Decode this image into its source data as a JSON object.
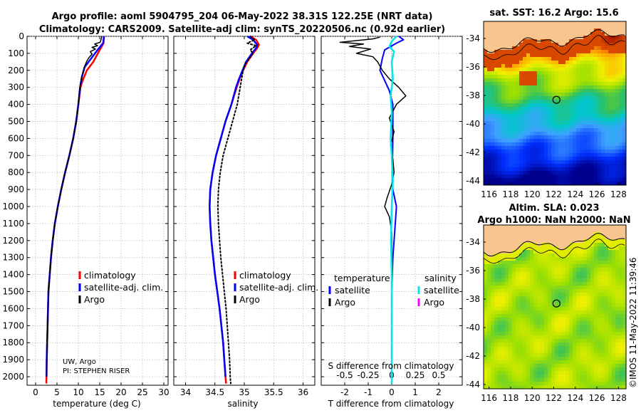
{
  "titles": {
    "line1": "Argo profile: aoml 5904795_204 06-May-2022 38.31S 122.25E (NRT data)",
    "line2": "Climatology: CARS2009. Satellite-adj clim: synTS_20220506.nc (0.92d earlier)"
  },
  "credits": {
    "line1": "UW, Argo",
    "line2": "PI: STEPHEN RISER"
  },
  "stamp": "©IMOS 11-May-2022 11:39:46",
  "colors": {
    "climatology": "#ff0000",
    "satellite": "#0000ff",
    "argo": "#000000",
    "sat_salinity": "#00e5ee",
    "argo_salinity": "#ff00ff"
  },
  "chart_data": [
    {
      "type": "line",
      "xlabel": "temperature (deg C)",
      "xlim": [
        -2,
        31
      ],
      "ylim": [
        2050,
        0
      ],
      "xticks": [
        0,
        5,
        10,
        15,
        20,
        25,
        30
      ],
      "yticks": [
        0,
        100,
        200,
        300,
        400,
        500,
        600,
        700,
        800,
        900,
        1000,
        1100,
        1200,
        1300,
        1400,
        1500,
        1600,
        1700,
        1800,
        1900,
        2000
      ],
      "legend": {
        "position": "center-right",
        "entries": [
          "climatology",
          "satellite-adj. clim.",
          "Argo"
        ]
      },
      "series": [
        {
          "name": "climatology",
          "color": "#ff0000",
          "width": 2.5,
          "points": [
            [
              16.0,
              0
            ],
            [
              15.9,
              40
            ],
            [
              15.0,
              80
            ],
            [
              13.5,
              150
            ],
            [
              12.0,
              200
            ],
            [
              11.0,
              260
            ],
            [
              10.5,
              300
            ],
            [
              10.0,
              400
            ],
            [
              9.5,
              500
            ],
            [
              8.8,
              600
            ],
            [
              7.9,
              700
            ],
            [
              6.9,
              800
            ],
            [
              6.0,
              900
            ],
            [
              5.2,
              1000
            ],
            [
              4.5,
              1100
            ],
            [
              4.0,
              1200
            ],
            [
              3.6,
              1300
            ],
            [
              3.3,
              1400
            ],
            [
              3.0,
              1500
            ],
            [
              2.9,
              1600
            ],
            [
              2.8,
              1700
            ],
            [
              2.7,
              1800
            ],
            [
              2.6,
              1900
            ],
            [
              2.55,
              2000
            ],
            [
              2.5,
              2040
            ]
          ]
        },
        {
          "name": "satellite-adj. clim.",
          "color": "#0000ff",
          "width": 2.5,
          "points": [
            [
              16.0,
              0
            ],
            [
              15.8,
              40
            ],
            [
              14.5,
              80
            ],
            [
              13.0,
              130
            ],
            [
              11.5,
              180
            ],
            [
              10.8,
              240
            ],
            [
              10.4,
              300
            ],
            [
              10.0,
              400
            ],
            [
              9.5,
              500
            ],
            [
              8.8,
              600
            ],
            [
              7.9,
              700
            ],
            [
              6.9,
              800
            ],
            [
              6.0,
              900
            ],
            [
              5.2,
              1000
            ],
            [
              4.5,
              1100
            ],
            [
              4.0,
              1200
            ],
            [
              3.6,
              1300
            ],
            [
              3.3,
              1400
            ],
            [
              3.0,
              1500
            ],
            [
              2.9,
              1600
            ],
            [
              2.8,
              1700
            ],
            [
              2.7,
              1800
            ],
            [
              2.6,
              1900
            ],
            [
              2.55,
              2000
            ]
          ]
        },
        {
          "name": "Argo",
          "color": "#000000",
          "width": 1.5,
          "points": [
            [
              15.5,
              0
            ],
            [
              15.3,
              20
            ],
            [
              15.1,
              35
            ],
            [
              13.8,
              45
            ],
            [
              14.5,
              55
            ],
            [
              13.2,
              65
            ],
            [
              14.0,
              75
            ],
            [
              12.8,
              90
            ],
            [
              13.2,
              105
            ],
            [
              12.5,
              125
            ],
            [
              12.0,
              145
            ],
            [
              11.4,
              180
            ],
            [
              10.9,
              230
            ],
            [
              10.5,
              280
            ],
            [
              10.2,
              340
            ],
            [
              9.9,
              420
            ],
            [
              9.5,
              500
            ],
            [
              8.8,
              600
            ],
            [
              7.9,
              700
            ],
            [
              6.9,
              800
            ],
            [
              6.0,
              900
            ],
            [
              5.2,
              1000
            ],
            [
              4.5,
              1100
            ],
            [
              4.0,
              1200
            ],
            [
              3.6,
              1300
            ],
            [
              3.3,
              1400
            ],
            [
              3.0,
              1500
            ],
            [
              2.9,
              1600
            ],
            [
              2.8,
              1700
            ],
            [
              2.7,
              1800
            ],
            [
              2.6,
              1900
            ],
            [
              2.55,
              2000
            ]
          ]
        }
      ]
    },
    {
      "type": "line",
      "xlabel": "salinity",
      "xlim": [
        33.8,
        36.2
      ],
      "ylim": [
        2050,
        0
      ],
      "xticks": [
        34,
        34.5,
        35,
        35.5,
        36
      ],
      "legend": {
        "position": "center-right",
        "entries": [
          "climatology",
          "satellite-adj. clim.",
          "Argo"
        ]
      },
      "series": [
        {
          "name": "climatology",
          "color": "#ff0000",
          "width": 2.5,
          "points": [
            [
              35.1,
              0
            ],
            [
              35.2,
              20
            ],
            [
              35.25,
              50
            ],
            [
              35.22,
              70
            ],
            [
              35.15,
              100
            ],
            [
              35.05,
              150
            ],
            [
              34.98,
              200
            ],
            [
              34.92,
              250
            ],
            [
              34.87,
              300
            ],
            [
              34.78,
              400
            ],
            [
              34.68,
              500
            ],
            [
              34.6,
              600
            ],
            [
              34.52,
              700
            ],
            [
              34.46,
              800
            ],
            [
              34.42,
              900
            ],
            [
              34.41,
              1000
            ],
            [
              34.42,
              1100
            ],
            [
              34.44,
              1200
            ],
            [
              34.47,
              1300
            ],
            [
              34.5,
              1400
            ],
            [
              34.54,
              1500
            ],
            [
              34.58,
              1600
            ],
            [
              34.61,
              1700
            ],
            [
              34.64,
              1800
            ],
            [
              34.66,
              1900
            ],
            [
              34.68,
              2000
            ],
            [
              34.69,
              2040
            ]
          ]
        },
        {
          "name": "satellite-adj. clim.",
          "color": "#0000ff",
          "width": 2.5,
          "points": [
            [
              35.05,
              0
            ],
            [
              35.15,
              20
            ],
            [
              35.22,
              50
            ],
            [
              35.2,
              70
            ],
            [
              35.13,
              100
            ],
            [
              35.03,
              150
            ],
            [
              34.97,
              200
            ],
            [
              34.91,
              250
            ],
            [
              34.86,
              300
            ],
            [
              34.78,
              400
            ],
            [
              34.68,
              500
            ],
            [
              34.6,
              600
            ],
            [
              34.52,
              700
            ],
            [
              34.46,
              800
            ],
            [
              34.42,
              900
            ],
            [
              34.41,
              1000
            ],
            [
              34.42,
              1100
            ],
            [
              34.44,
              1200
            ],
            [
              34.47,
              1300
            ],
            [
              34.5,
              1400
            ],
            [
              34.54,
              1500
            ],
            [
              34.58,
              1600
            ],
            [
              34.61,
              1700
            ],
            [
              34.64,
              1800
            ],
            [
              34.66,
              1900
            ],
            [
              34.68,
              2000
            ]
          ]
        },
        {
          "name": "Argo",
          "color": "#000000",
          "width": 2,
          "dotted": true,
          "points": [
            [
              35.1,
              0
            ],
            [
              35.18,
              20
            ],
            [
              35.05,
              40
            ],
            [
              35.2,
              55
            ],
            [
              35.1,
              80
            ],
            [
              35.15,
              100
            ],
            [
              35.02,
              160
            ],
            [
              34.98,
              200
            ],
            [
              34.93,
              300
            ],
            [
              34.88,
              400
            ],
            [
              34.8,
              500
            ],
            [
              34.72,
              600
            ],
            [
              34.64,
              700
            ],
            [
              34.59,
              800
            ],
            [
              34.56,
              900
            ],
            [
              34.55,
              1000
            ],
            [
              34.56,
              1100
            ],
            [
              34.58,
              1200
            ],
            [
              34.6,
              1300
            ],
            [
              34.63,
              1400
            ],
            [
              34.66,
              1500
            ],
            [
              34.69,
              1600
            ],
            [
              34.71,
              1700
            ],
            [
              34.73,
              1800
            ],
            [
              34.75,
              1900
            ],
            [
              34.76,
              2000
            ],
            [
              34.77,
              2040
            ]
          ]
        }
      ]
    },
    {
      "type": "line",
      "xlabel": "T difference from climatology",
      "xlabel_top": "S difference from climatology",
      "xlim": [
        -3,
        3
      ],
      "ylim": [
        2050,
        0
      ],
      "xticks": [
        -2,
        -1,
        0,
        1,
        2
      ],
      "xticks_top": [
        -0.5,
        -0.25,
        0,
        0.25,
        0.5
      ],
      "xlim_top": [
        -0.75,
        0.75
      ],
      "legend": {
        "position": "center",
        "temperature_title": "temperature",
        "salinity_title": "salinity",
        "entries": [
          "satellite",
          "Argo"
        ]
      },
      "series": [
        {
          "name": "satellite",
          "group": "temperature",
          "color": "#0000ff",
          "width": 2,
          "points": [
            [
              0.3,
              0
            ],
            [
              0.5,
              20
            ],
            [
              0.2,
              40
            ],
            [
              -0.3,
              80
            ],
            [
              -0.4,
              130
            ],
            [
              -0.5,
              200
            ],
            [
              -0.3,
              260
            ],
            [
              -0.1,
              320
            ],
            [
              0.05,
              400
            ],
            [
              0.05,
              600
            ],
            [
              0.02,
              800
            ],
            [
              0.05,
              900
            ],
            [
              0.2,
              1000
            ],
            [
              0.15,
              1100
            ],
            [
              0.05,
              1300
            ],
            [
              0.0,
              1500
            ],
            [
              0.0,
              1800
            ],
            [
              0.0,
              2040
            ]
          ]
        },
        {
          "name": "Argo",
          "group": "temperature",
          "color": "#000000",
          "width": 1.5,
          "points": [
            [
              -0.5,
              5
            ],
            [
              -0.8,
              15
            ],
            [
              -2.2,
              35
            ],
            [
              -1.2,
              45
            ],
            [
              -1.8,
              60
            ],
            [
              -0.9,
              75
            ],
            [
              -1.5,
              100
            ],
            [
              -0.8,
              120
            ],
            [
              -0.6,
              150
            ],
            [
              -0.4,
              200
            ],
            [
              -0.1,
              250
            ],
            [
              0.3,
              300
            ],
            [
              0.6,
              350
            ],
            [
              0.2,
              400
            ],
            [
              -0.1,
              480
            ],
            [
              0.1,
              560
            ],
            [
              -0.05,
              640
            ],
            [
              0.05,
              720
            ],
            [
              0.1,
              800
            ],
            [
              0.0,
              870
            ],
            [
              -0.2,
              950
            ],
            [
              -0.3,
              1000
            ],
            [
              -0.1,
              1060
            ],
            [
              0.0,
              1150
            ],
            [
              0.0,
              1300
            ],
            [
              0.0,
              1500
            ],
            [
              0.0,
              1800
            ],
            [
              0.0,
              2000
            ]
          ]
        },
        {
          "name": "satellite",
          "group": "salinity",
          "color": "#00e5ee",
          "width": 2.5,
          "points": [
            [
              0.2,
              0
            ],
            [
              0.0,
              30
            ],
            [
              -0.1,
              60
            ],
            [
              0.1,
              90
            ],
            [
              0.0,
              150
            ],
            [
              0.05,
              250
            ],
            [
              -0.05,
              350
            ],
            [
              0.0,
              450
            ],
            [
              -0.05,
              600
            ],
            [
              0.0,
              700
            ],
            [
              0.05,
              850
            ],
            [
              0.0,
              1000
            ],
            [
              -0.03,
              1200
            ],
            [
              0.0,
              1400
            ],
            [
              0.0,
              1700
            ],
            [
              0.0,
              2040
            ]
          ]
        },
        {
          "name": "Argo",
          "group": "salinity",
          "color": "#ff00ff",
          "width": 1.5,
          "points": []
        }
      ]
    }
  ],
  "maps": {
    "sst": {
      "title": "sat. SST: 16.2 Argo: 15.6",
      "xticks": [
        116,
        118,
        120,
        122,
        124,
        126,
        128
      ],
      "yticks": [
        -34,
        -36,
        -38,
        -40,
        -42,
        -44
      ],
      "xlim": [
        115.5,
        128.7
      ],
      "ylim": [
        -44.3,
        -32.8
      ],
      "marker": [
        122.25,
        -38.31
      ]
    },
    "sla": {
      "title1": "Altim. SLA: 0.023",
      "title2": "Argo h1000: NaN h2000: NaN",
      "xticks": [
        116,
        118,
        120,
        122,
        124,
        126,
        128
      ],
      "yticks": [
        -34,
        -36,
        -38,
        -40,
        -42,
        -44
      ],
      "xlim": [
        115.5,
        128.7
      ],
      "ylim": [
        -44.3,
        -32.8
      ],
      "marker": [
        122.25,
        -38.31
      ]
    }
  }
}
